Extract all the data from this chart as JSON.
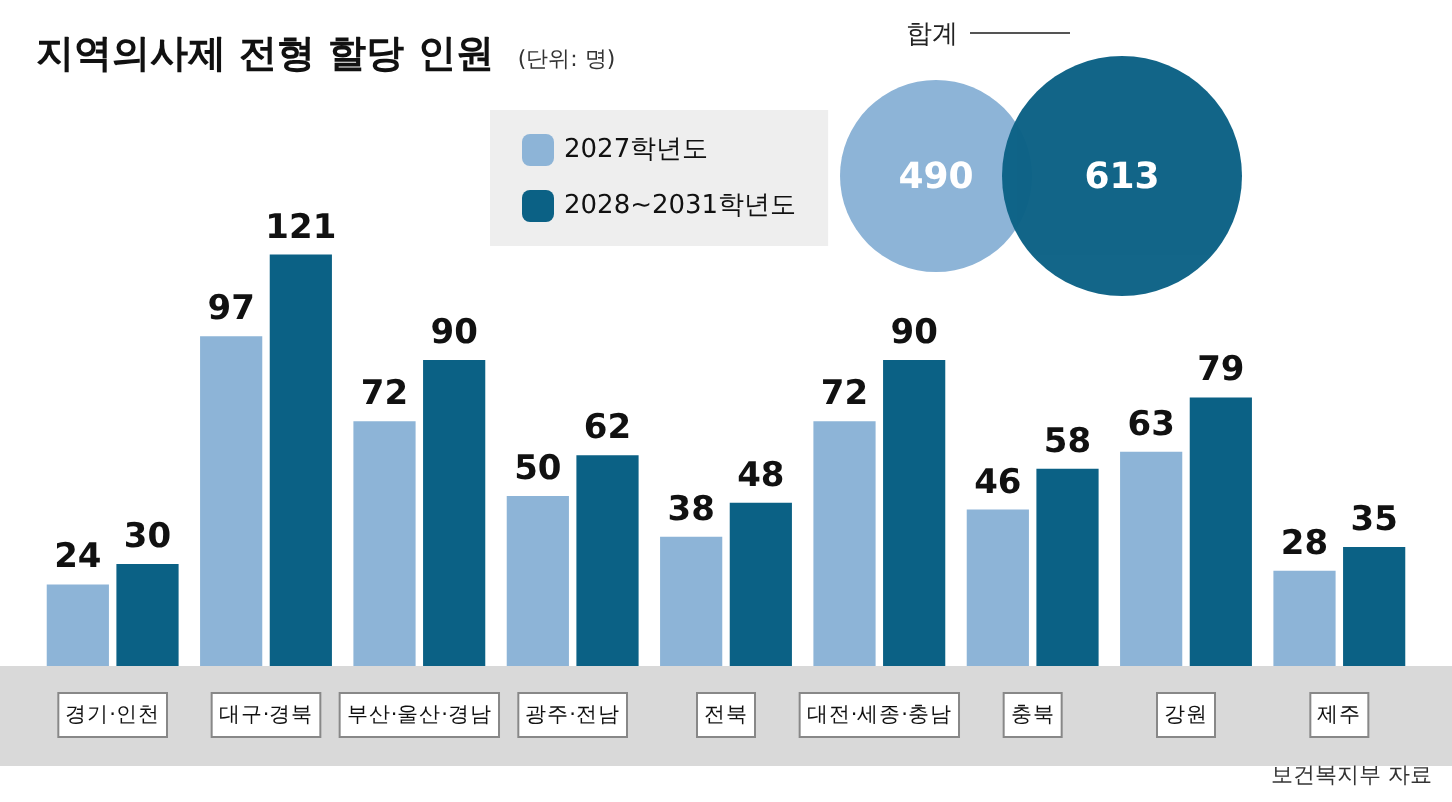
{
  "chart_data": {
    "type": "bar",
    "title": "지역의사제 전형 할당 인원",
    "subtitle": "(단위: 명)",
    "categories": [
      "경기·인천",
      "대구·경북",
      "부산·울산·경남",
      "광주·전남",
      "전북",
      "대전·세종·충남",
      "충북",
      "강원",
      "제주"
    ],
    "series": [
      {
        "name": "2027학년도",
        "color": "#8db4d7",
        "values": [
          24,
          97,
          72,
          50,
          38,
          72,
          46,
          63,
          28
        ]
      },
      {
        "name": "2028~2031학년도",
        "color": "#0b6185",
        "values": [
          30,
          121,
          90,
          62,
          48,
          90,
          58,
          79,
          35
        ]
      }
    ],
    "data_labels": true,
    "legend": "top",
    "grid": false,
    "annotations": [
      "합계",
      "490",
      "613",
      "보건복지부 자료"
    ]
  }
}
